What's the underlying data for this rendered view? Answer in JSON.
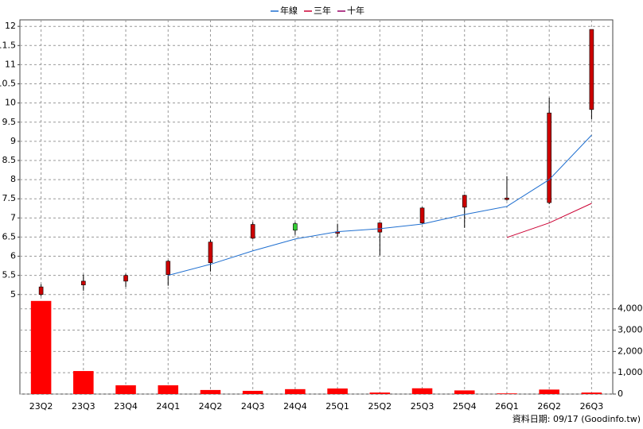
{
  "chart_data": {
    "type": "candlestick",
    "categories": [
      "23Q2",
      "23Q3",
      "23Q4",
      "24Q1",
      "24Q2",
      "24Q3",
      "24Q4",
      "25Q1",
      "25Q2",
      "25Q3",
      "25Q4",
      "26Q1",
      "26Q2",
      "26Q3"
    ],
    "open": [
      5.0,
      5.25,
      5.35,
      5.52,
      5.83,
      6.47,
      6.85,
      6.6,
      6.63,
      6.87,
      7.28,
      7.48,
      7.4,
      9.83
    ],
    "high": [
      5.27,
      5.52,
      5.54,
      5.9,
      6.43,
      6.89,
      6.89,
      6.85,
      6.88,
      7.28,
      7.61,
      8.09,
      10.14,
      11.92
    ],
    "low": [
      4.96,
      5.1,
      5.2,
      5.23,
      5.6,
      6.45,
      6.56,
      6.5,
      6.02,
      6.85,
      6.74,
      7.45,
      7.36,
      9.57
    ],
    "close": [
      5.2,
      5.35,
      5.5,
      5.87,
      6.37,
      6.83,
      6.68,
      6.64,
      6.87,
      7.26,
      7.59,
      7.52,
      9.74,
      11.92
    ],
    "up_color": "#cc0000",
    "down_color": "#33cc33",
    "series": [
      {
        "name": "年線",
        "color": "#1f6fd0",
        "values": [
          null,
          null,
          null,
          5.5,
          5.79,
          6.14,
          6.45,
          6.64,
          6.72,
          6.84,
          7.09,
          7.3,
          8.0,
          9.16
        ]
      },
      {
        "name": "三年",
        "color": "#cc0033",
        "values": [
          null,
          null,
          null,
          null,
          null,
          null,
          null,
          null,
          null,
          null,
          null,
          6.49,
          6.87,
          7.38
        ]
      },
      {
        "name": "十年",
        "color": "#990066",
        "values": [
          null,
          null,
          null,
          null,
          null,
          null,
          null,
          null,
          null,
          null,
          null,
          null,
          null,
          null
        ]
      }
    ],
    "ylim": [
      4.85,
      12.17
    ],
    "yticks": [
      5,
      5.5,
      6,
      6.5,
      7,
      7.5,
      8,
      8.5,
      9,
      9.5,
      10,
      10.5,
      11,
      11.5,
      12
    ],
    "volume": {
      "color": "#ff0000",
      "values": [
        4370,
        1080,
        410,
        410,
        190,
        150,
        230,
        260,
        70,
        270,
        170,
        30,
        210,
        70
      ],
      "ylim": [
        0,
        4400
      ],
      "yticks": [
        0,
        {
          "value": 1000,
          "label": "1,000"
        },
        {
          "value": 2000,
          "label": "2,000"
        },
        {
          "value": 3000,
          "label": "3,000"
        },
        {
          "value": 4000,
          "label": "4,000"
        }
      ]
    },
    "grid": true,
    "source": "資料日期: 09/17 (Goodinfo.tw)"
  }
}
